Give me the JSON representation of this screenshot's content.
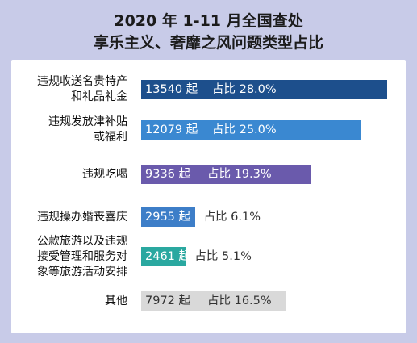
{
  "title_line1": "2020 年 1-11 月全国查处",
  "title_line2": "享乐主义、奢靡之风问题类型占比",
  "colors": {
    "background": "#c8cbe8",
    "panel": "#ffffff",
    "bars": [
      "#1d4f8c",
      "#3a88d1",
      "#6a5aac",
      "#3d7ec8",
      "#2aa8a0",
      "#d9d9d9"
    ]
  },
  "chart_data": {
    "type": "bar",
    "orientation": "horizontal",
    "categories": [
      "违规收送名贵特产\n和礼品礼金",
      "违规发放津补贴\n或福利",
      "违规吃喝",
      "违规操办婚丧喜庆",
      "公款旅游以及违规\n接受管理和服务对\n象等旅游活动安排",
      "其他"
    ],
    "values": [
      13540,
      12079,
      9336,
      2955,
      2461,
      7972
    ],
    "shares": [
      "28.0%",
      "25.0%",
      "19.3%",
      "6.1%",
      "5.1%",
      "16.5%"
    ],
    "count_labels": [
      "13540 起",
      "12079 起",
      "9336 起",
      "2955 起",
      "2461 起",
      "7972 起"
    ],
    "share_labels": [
      "占比 28.0%",
      "占比 25.0%",
      "占比 19.3%",
      "占比 6.1%",
      "占比 5.1%",
      "占比 16.5%"
    ],
    "grid": false,
    "legend": "none"
  }
}
